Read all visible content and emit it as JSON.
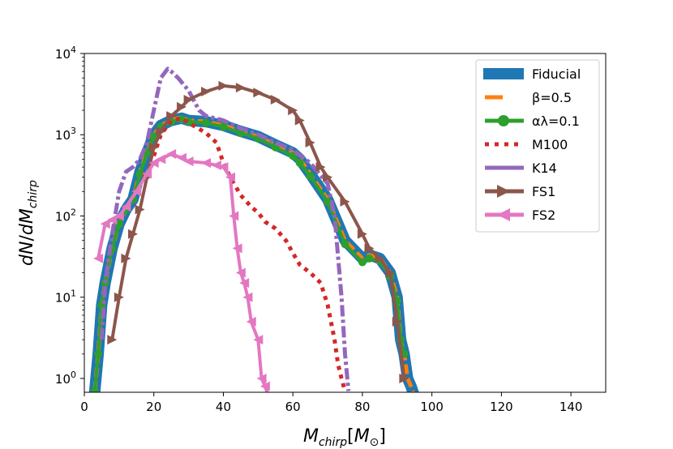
{
  "chart_data": {
    "type": "line",
    "title": "",
    "xlabel": "M_chirp[M_⊙]",
    "ylabel": "dN/dM_chirp",
    "xlim": [
      0,
      150
    ],
    "ylim_log10": [
      -0.17,
      4
    ],
    "yscale": "log",
    "x_ticks": [
      "0",
      "20",
      "40",
      "60",
      "80",
      "100",
      "120",
      "140"
    ],
    "y_ticks": [
      {
        "base": "10",
        "exp": "0",
        "value": 1
      },
      {
        "base": "10",
        "exp": "1",
        "value": 10
      },
      {
        "base": "10",
        "exp": "2",
        "value": 100
      },
      {
        "base": "10",
        "exp": "3",
        "value": 1000
      },
      {
        "base": "10",
        "exp": "4",
        "value": 10000
      }
    ],
    "legend_position": "top-right",
    "series": [
      {
        "name": "Fiducial",
        "color": "#1f77b4",
        "style": "solid-thick",
        "x": [
          3,
          4,
          5,
          6,
          8,
          10,
          12,
          14,
          16,
          18,
          20,
          22,
          25,
          28,
          30,
          35,
          40,
          45,
          50,
          55,
          60,
          62,
          65,
          70,
          75,
          80,
          82,
          85,
          88,
          90,
          91,
          92,
          93,
          94,
          95
        ],
        "y": [
          0.7,
          2,
          8,
          15,
          40,
          80,
          120,
          160,
          350,
          600,
          1000,
          1300,
          1500,
          1600,
          1500,
          1450,
          1300,
          1100,
          950,
          750,
          600,
          500,
          330,
          160,
          50,
          30,
          33,
          30,
          20,
          10,
          3,
          2,
          1,
          0.8,
          0.6
        ]
      },
      {
        "name": "β=0.5",
        "color": "#ff7f0e",
        "style": "dashed",
        "x": [
          3,
          4,
          5,
          6,
          8,
          10,
          12,
          14,
          16,
          18,
          20,
          22,
          25,
          28,
          30,
          35,
          40,
          45,
          50,
          55,
          60,
          62,
          65,
          70,
          75,
          80,
          82,
          85,
          88,
          90,
          91,
          92,
          93,
          94,
          95
        ],
        "y": [
          0.7,
          2,
          8,
          15,
          40,
          80,
          120,
          160,
          350,
          600,
          1000,
          1300,
          1500,
          1650,
          1500,
          1450,
          1300,
          1100,
          950,
          750,
          600,
          500,
          330,
          160,
          50,
          30,
          33,
          30,
          20,
          10,
          3,
          2,
          1,
          0.8,
          0.6
        ]
      },
      {
        "name": "αλ=0.1",
        "color": "#2ca02c",
        "style": "marker-dot",
        "x": [
          3,
          4,
          5,
          6,
          8,
          10,
          12,
          14,
          16,
          18,
          20,
          22,
          25,
          28,
          30,
          35,
          40,
          45,
          50,
          55,
          60,
          62,
          65,
          70,
          75,
          80,
          82,
          85,
          88,
          90,
          91,
          92
        ],
        "y": [
          0.7,
          2,
          8,
          15,
          40,
          80,
          120,
          160,
          330,
          600,
          950,
          1250,
          1450,
          1550,
          1450,
          1400,
          1250,
          1050,
          900,
          700,
          550,
          450,
          310,
          150,
          45,
          27,
          30,
          28,
          18,
          9,
          3,
          2
        ]
      },
      {
        "name": "M100",
        "color": "#d62728",
        "style": "dotted",
        "x": [
          20,
          22,
          25,
          28,
          30,
          32,
          35,
          38,
          40,
          42,
          45,
          48,
          50,
          52,
          55,
          58,
          60,
          62,
          65,
          68,
          70,
          72,
          73,
          74,
          75
        ],
        "y": [
          550,
          1000,
          1500,
          1600,
          1400,
          1250,
          1050,
          800,
          450,
          300,
          180,
          130,
          110,
          85,
          70,
          50,
          35,
          25,
          20,
          15,
          8,
          3,
          1.5,
          1,
          0.7
        ]
      },
      {
        "name": "K14",
        "color": "#9467bd",
        "style": "dashdot",
        "x": [
          5,
          6,
          8,
          10,
          12,
          14,
          16,
          18,
          20,
          22,
          24,
          25,
          27,
          30,
          33,
          35,
          40,
          45,
          50,
          55,
          60,
          65,
          70,
          72,
          74,
          75,
          76
        ],
        "y": [
          3,
          15,
          60,
          200,
          350,
          400,
          500,
          800,
          2000,
          5000,
          6500,
          6000,
          5000,
          3500,
          2000,
          1700,
          1500,
          1200,
          1000,
          800,
          650,
          450,
          250,
          100,
          10,
          2,
          0.7
        ]
      },
      {
        "name": "FS1",
        "color": "#8c564b",
        "style": "marker-triangle-right",
        "x": [
          8,
          10,
          12,
          14,
          16,
          18,
          20,
          22,
          25,
          28,
          30,
          35,
          40,
          45,
          50,
          55,
          60,
          62,
          65,
          68,
          70,
          75,
          80,
          82,
          85,
          88,
          90,
          92
        ],
        "y": [
          3,
          10,
          30,
          60,
          120,
          300,
          700,
          1100,
          1700,
          2200,
          2700,
          3400,
          4000,
          3800,
          3300,
          2700,
          2000,
          1500,
          800,
          400,
          300,
          150,
          60,
          40,
          30,
          20,
          5,
          1
        ]
      },
      {
        "name": "FS2",
        "color": "#e377c2",
        "style": "marker-triangle-left",
        "x": [
          4,
          6,
          8,
          10,
          12,
          15,
          18,
          20,
          22,
          25,
          28,
          30,
          35,
          38,
          40,
          42,
          43,
          44,
          45,
          46,
          47,
          48,
          50,
          51,
          52,
          53
        ],
        "y": [
          30,
          80,
          90,
          100,
          130,
          200,
          330,
          450,
          500,
          580,
          520,
          470,
          450,
          420,
          400,
          300,
          100,
          40,
          20,
          15,
          10,
          5,
          3,
          1,
          0.8,
          0.6
        ]
      }
    ]
  }
}
